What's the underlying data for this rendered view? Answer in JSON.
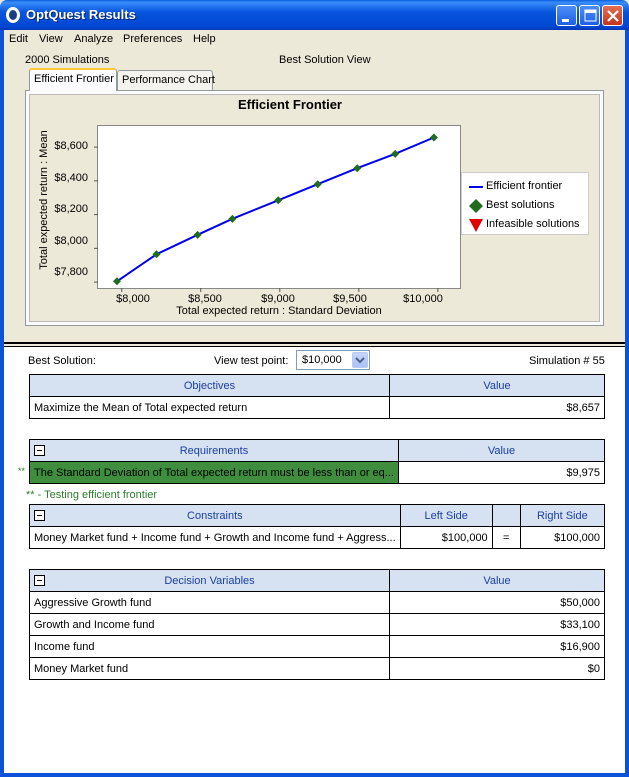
{
  "window": {
    "title": "OptQuest Results"
  },
  "menu": [
    "Edit",
    "View",
    "Analyze",
    "Preferences",
    "Help"
  ],
  "header": {
    "simulations": "2000 Simulations",
    "view_title": "Best Solution View"
  },
  "tabs": [
    {
      "label": "Efficient Frontier",
      "active": true
    },
    {
      "label": "Performance Chart",
      "active": false
    }
  ],
  "chart_data": {
    "type": "line",
    "title": "Efficient Frontier",
    "xlabel": "Total expected return : Standard Deviation",
    "ylabel": "Total expected return : Mean",
    "x_ticks": [
      "$8,000",
      "$8,500",
      "$9,000",
      "$9,500",
      "$10,000"
    ],
    "y_ticks": [
      "$7,800",
      "$8,000",
      "$8,200",
      "$8,400",
      "$8,600"
    ],
    "xlim": [
      7850,
      10140
    ],
    "ylim": [
      7765,
      8725
    ],
    "series": [
      {
        "name": "Efficient frontier",
        "x": [
          7970,
          8220,
          8480,
          8700,
          8990,
          9240,
          9490,
          9730,
          9975
        ],
        "y": [
          7805,
          7965,
          8080,
          8175,
          8285,
          8380,
          8475,
          8560,
          8657
        ],
        "color": "#0000ee"
      }
    ],
    "points_color": "#1f6b1f",
    "legend": [
      {
        "label": "Efficient frontier",
        "marker": "line",
        "color": "#0000ee"
      },
      {
        "label": "Best solutions",
        "marker": "diamond",
        "color": "#1f6b1f"
      },
      {
        "label": "Infeasible solutions",
        "marker": "triangle-down",
        "color": "#e00000"
      }
    ],
    "legend_position": "right",
    "grid": false
  },
  "best": {
    "label": "Best Solution:",
    "view_test_point_label": "View test point:",
    "test_point_value": "$10,000",
    "simulation": "Simulation # 55"
  },
  "objectives": {
    "header": "Objectives",
    "value_header": "Value",
    "rows": [
      {
        "name": "Maximize the Mean of Total expected return",
        "value": "$8,657"
      }
    ]
  },
  "requirements": {
    "header": "Requirements",
    "value_header": "Value",
    "marker": "**",
    "rows": [
      {
        "name": "The Standard Deviation of Total expected return must be less than or eq...",
        "value": "$9,975"
      }
    ]
  },
  "testing_note": "** - Testing efficient frontier",
  "constraints": {
    "header": "Constraints",
    "left_header": "Left Side",
    "right_header": "Right Side",
    "rows": [
      {
        "name": "Money Market fund + Income fund + Growth and Income fund + Aggress...",
        "left": "$100,000",
        "op": "=",
        "right": "$100,000"
      }
    ]
  },
  "decision_variables": {
    "header": "Decision Variables",
    "value_header": "Value",
    "rows": [
      {
        "name": "Aggressive Growth fund",
        "value": "$50,000"
      },
      {
        "name": "Growth and Income fund",
        "value": "$33,100"
      },
      {
        "name": "Income fund",
        "value": "$16,900"
      },
      {
        "name": "Money Market fund",
        "value": "$0"
      }
    ]
  }
}
